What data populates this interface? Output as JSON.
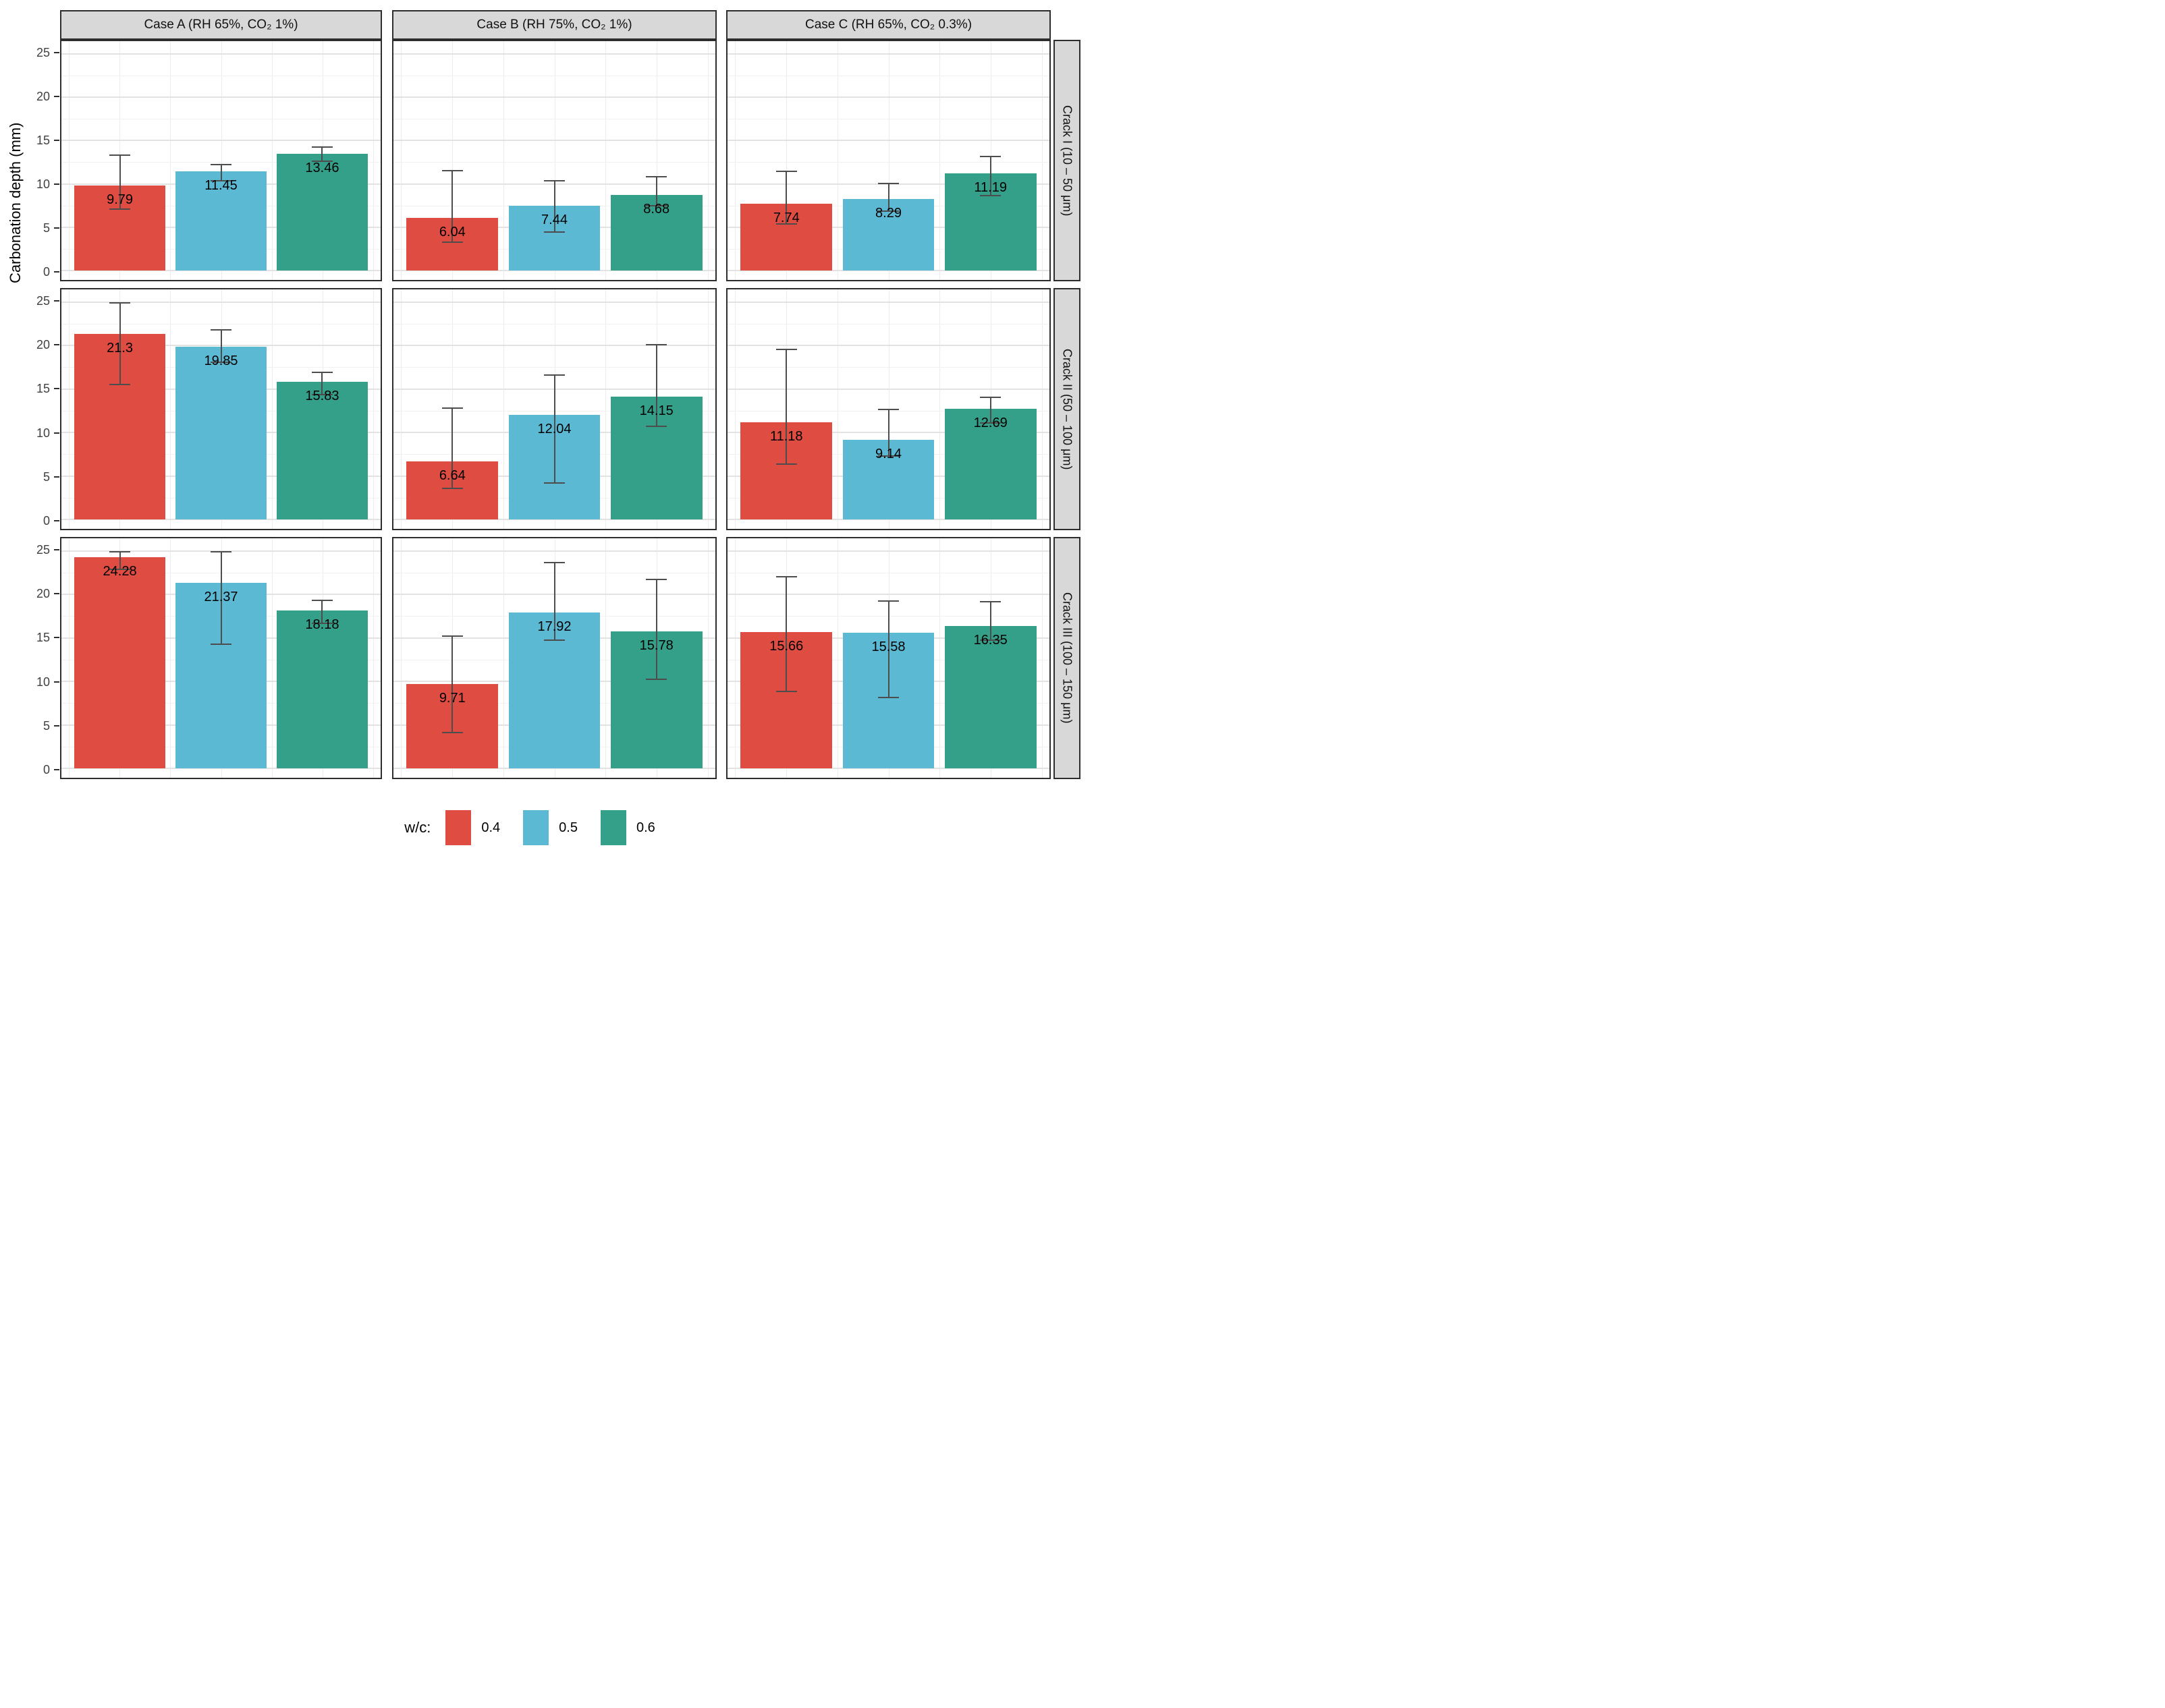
{
  "chart_data": {
    "type": "bar",
    "title": "",
    "ylabel": "Carbonation depth (mm)",
    "ylim": [
      0,
      25
    ],
    "y_ticks": [
      0,
      5,
      10,
      15,
      20,
      25
    ],
    "grid": true,
    "legend": {
      "title": "w/c:",
      "position": "bottom",
      "entries": [
        {
          "label": "0.4",
          "color": "#df4c41"
        },
        {
          "label": "0.5",
          "color": "#5bb9d3"
        },
        {
          "label": "0.6",
          "color": "#35a089"
        }
      ]
    },
    "facet_cols": [
      "Case A (RH 65%, CO₂ 1%)",
      "Case B (RH 75%, CO₂ 1%)",
      "Case C (RH 65%, CO₂ 0.3%)"
    ],
    "facet_rows": [
      "Crack I (10 – 50 μm)",
      "Crack II (50 – 100 μm)",
      "Crack III (100 – 150 μm)"
    ],
    "panels": [
      {
        "row": 0,
        "col": 0,
        "bars": [
          {
            "series": "0.4",
            "value": 9.79,
            "err_low": 7.0,
            "err_high": 13.4
          },
          {
            "series": "0.5",
            "value": 11.45,
            "err_low": 10.3,
            "err_high": 12.3
          },
          {
            "series": "0.6",
            "value": 13.46,
            "err_low": 12.5,
            "err_high": 14.3
          }
        ]
      },
      {
        "row": 0,
        "col": 1,
        "bars": [
          {
            "series": "0.4",
            "value": 6.04,
            "err_low": 3.2,
            "err_high": 11.6
          },
          {
            "series": "0.5",
            "value": 7.44,
            "err_low": 4.4,
            "err_high": 10.4
          },
          {
            "series": "0.6",
            "value": 8.68,
            "err_low": 7.4,
            "err_high": 10.9
          }
        ]
      },
      {
        "row": 0,
        "col": 2,
        "bars": [
          {
            "series": "0.4",
            "value": 7.74,
            "err_low": 5.3,
            "err_high": 11.5
          },
          {
            "series": "0.5",
            "value": 8.29,
            "err_low": 6.8,
            "err_high": 10.1
          },
          {
            "series": "0.6",
            "value": 11.19,
            "err_low": 8.6,
            "err_high": 13.2
          }
        ]
      },
      {
        "row": 1,
        "col": 0,
        "bars": [
          {
            "series": "0.4",
            "value": 21.3,
            "err_low": 15.4,
            "err_high": 25.0
          },
          {
            "series": "0.5",
            "value": 19.85,
            "err_low": 18.0,
            "err_high": 21.9
          },
          {
            "series": "0.6",
            "value": 15.83,
            "err_low": 14.3,
            "err_high": 17.0
          }
        ]
      },
      {
        "row": 1,
        "col": 1,
        "bars": [
          {
            "series": "0.4",
            "value": 6.64,
            "err_low": 3.5,
            "err_high": 12.9
          },
          {
            "series": "0.5",
            "value": 12.04,
            "err_low": 4.1,
            "err_high": 16.7
          },
          {
            "series": "0.6",
            "value": 14.15,
            "err_low": 10.6,
            "err_high": 20.2
          }
        ]
      },
      {
        "row": 1,
        "col": 2,
        "bars": [
          {
            "series": "0.4",
            "value": 11.18,
            "err_low": 6.3,
            "err_high": 19.6
          },
          {
            "series": "0.5",
            "value": 9.14,
            "err_low": 7.2,
            "err_high": 12.7
          },
          {
            "series": "0.6",
            "value": 12.69,
            "err_low": 11.0,
            "err_high": 14.1
          }
        ]
      },
      {
        "row": 2,
        "col": 0,
        "bars": [
          {
            "series": "0.4",
            "value": 24.28,
            "err_low": 22.8,
            "err_high": 25.0
          },
          {
            "series": "0.5",
            "value": 21.37,
            "err_low": 14.2,
            "err_high": 25.0
          },
          {
            "series": "0.6",
            "value": 18.18,
            "err_low": 16.6,
            "err_high": 19.4
          }
        ]
      },
      {
        "row": 2,
        "col": 1,
        "bars": [
          {
            "series": "0.4",
            "value": 9.71,
            "err_low": 4.0,
            "err_high": 15.3
          },
          {
            "series": "0.5",
            "value": 17.92,
            "err_low": 14.7,
            "err_high": 23.7
          },
          {
            "series": "0.6",
            "value": 15.78,
            "err_low": 10.2,
            "err_high": 21.8
          }
        ]
      },
      {
        "row": 2,
        "col": 2,
        "bars": [
          {
            "series": "0.4",
            "value": 15.66,
            "err_low": 8.8,
            "err_high": 22.1
          },
          {
            "series": "0.5",
            "value": 15.58,
            "err_low": 8.1,
            "err_high": 19.3
          },
          {
            "series": "0.6",
            "value": 16.35,
            "err_low": 14.7,
            "err_high": 19.2
          }
        ]
      }
    ]
  }
}
